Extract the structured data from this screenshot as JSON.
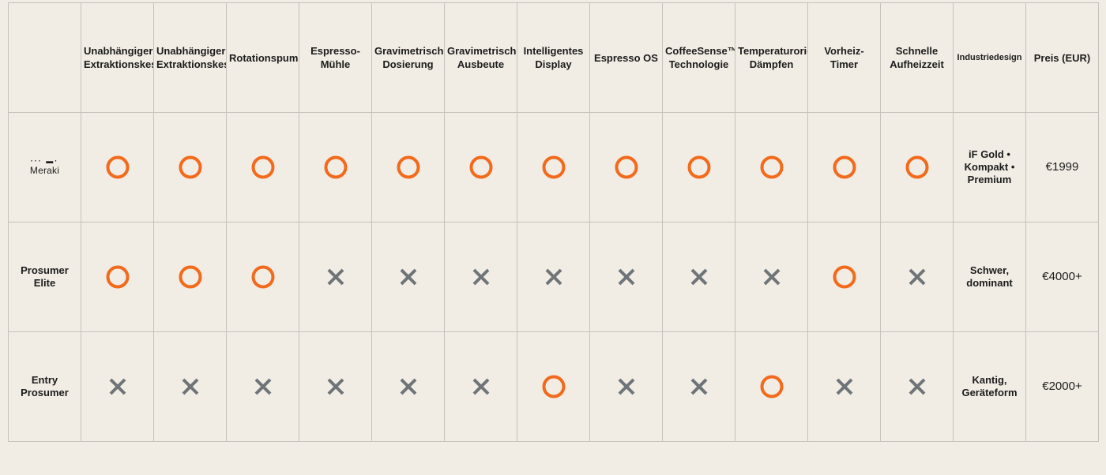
{
  "colors": {
    "yes": "#f26a1b",
    "no": "#6e7478",
    "border": "#c6c2bb",
    "background": "#f1ece4"
  },
  "columns": [
    "",
    "Unabhängiger Extraktionskessel",
    "Unabhängiger Extraktionskessel",
    "Rotationspumpe",
    "Espresso-Mühle",
    "Gravimetrische Dosierung",
    "Gravimetrische Ausbeute",
    "Intelligentes Display",
    "Espresso OS",
    "CoffeeSense™ Technologie",
    "Temperaturorientiertes Dämpfen",
    "Vorheiz-Timer",
    "Schnelle Aufheizzeit",
    "Industriedesign",
    "Preis (EUR)"
  ],
  "rows": [
    {
      "label": "Meraki",
      "logo_marks": "··· ▬·",
      "features": [
        "check-circle-icon",
        "check-circle-icon",
        "check-circle-icon",
        "check-circle-icon",
        "check-circle-icon",
        "check-circle-icon",
        "check-circle-icon",
        "check-circle-icon",
        "check-circle-icon",
        "check-circle-icon",
        "check-circle-icon",
        "check-circle-icon"
      ],
      "design_lines": [
        "iF Gold •",
        "Kompakt •",
        "Premium"
      ],
      "price": "€1999"
    },
    {
      "label_lines": [
        "Prosumer",
        "Elite"
      ],
      "features": [
        "check-circle-icon",
        "check-circle-icon",
        "check-circle-icon",
        "cross-icon",
        "cross-icon",
        "cross-icon",
        "cross-icon",
        "cross-icon",
        "cross-icon",
        "cross-icon",
        "check-circle-icon",
        "cross-icon"
      ],
      "design_lines": [
        "Schwer,",
        "dominant"
      ],
      "price": "€4000+"
    },
    {
      "label_lines": [
        "Entry",
        "Prosumer"
      ],
      "features": [
        "cross-icon",
        "cross-icon",
        "cross-icon",
        "cross-icon",
        "cross-icon",
        "cross-icon",
        "check-circle-icon",
        "cross-icon",
        "cross-icon",
        "check-circle-icon",
        "cross-icon",
        "cross-icon"
      ],
      "design_lines": [
        "Kantig,",
        "Geräteform"
      ],
      "price": "€2000+"
    }
  ]
}
